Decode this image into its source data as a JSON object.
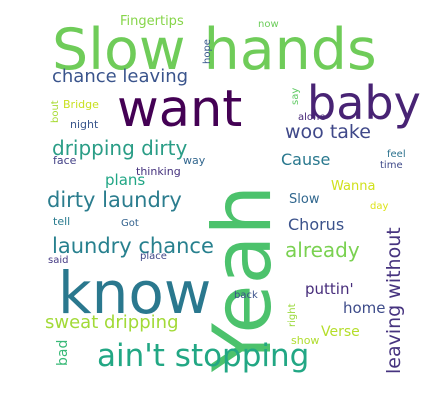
{
  "words": [
    {
      "text": "Slow hands",
      "color": "#6fcc59"
    },
    {
      "text": "want",
      "color": "#440154"
    },
    {
      "text": "baby",
      "color": "#482374"
    },
    {
      "text": "Yeah",
      "color": "#4cc26c"
    },
    {
      "text": "know",
      "color": "#2a788e"
    },
    {
      "text": "ain't stopping",
      "color": "#22a784"
    },
    {
      "text": "chance leaving",
      "color": "#3a548c"
    },
    {
      "text": "dripping dirty",
      "color": "#2a9d86"
    },
    {
      "text": "dirty laundry",
      "color": "#2b7d8e"
    },
    {
      "text": "laundry chance",
      "color": "#27808e"
    },
    {
      "text": "sweat dripping",
      "color": "#a2da37"
    },
    {
      "text": "woo take",
      "color": "#3f4889"
    },
    {
      "text": "Cause",
      "color": "#29788e"
    },
    {
      "text": "Chorus",
      "color": "#3b528b"
    },
    {
      "text": "already",
      "color": "#7ad151"
    },
    {
      "text": "leaving without",
      "color": "#46337f"
    },
    {
      "text": "puttin'",
      "color": "#472d7b"
    },
    {
      "text": "home",
      "color": "#3e4c8a"
    },
    {
      "text": "Verse",
      "color": "#b5de2b"
    },
    {
      "text": "plans",
      "color": "#21a685"
    },
    {
      "text": "Slow",
      "color": "#31678e"
    },
    {
      "text": "Wanna",
      "color": "#d0e11c"
    },
    {
      "text": "Fingertips",
      "color": "#86d549"
    },
    {
      "text": "now",
      "color": "#6ccd5a"
    },
    {
      "text": "hope",
      "color": "#38598c"
    },
    {
      "text": "Bridge",
      "color": "#c8e020"
    },
    {
      "text": "night",
      "color": "#39568c"
    },
    {
      "text": "bout",
      "color": "#a8db34"
    },
    {
      "text": "face",
      "color": "#424086"
    },
    {
      "text": "way",
      "color": "#31668e"
    },
    {
      "text": "thinking",
      "color": "#46337e"
    },
    {
      "text": "say",
      "color": "#5ec962"
    },
    {
      "text": "feel",
      "color": "#2c728e"
    },
    {
      "text": "time",
      "color": "#3e4989"
    },
    {
      "text": "alone",
      "color": "#482878"
    },
    {
      "text": "day",
      "color": "#dde318"
    },
    {
      "text": "tell",
      "color": "#297b8e"
    },
    {
      "text": "Got",
      "color": "#33628d"
    },
    {
      "text": "said",
      "color": "#443983"
    },
    {
      "text": "place",
      "color": "#3f4788"
    },
    {
      "text": "back",
      "color": "#3b528b"
    },
    {
      "text": "right",
      "color": "#9bd93c"
    },
    {
      "text": "show",
      "color": "#b0dd2f"
    },
    {
      "text": "bad",
      "color": "#38b977"
    }
  ]
}
